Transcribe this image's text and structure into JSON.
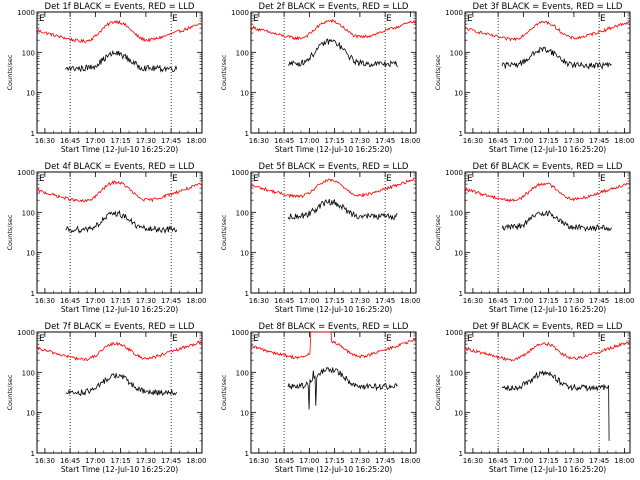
{
  "chart_data": {
    "type": "line",
    "xlabel": "Start Time (12-Jul-10 16:25:20)",
    "ylabel": "Counts/sec",
    "x_ticks": [
      "16:30",
      "16:45",
      "17:00",
      "17:15",
      "17:30",
      "17:45",
      "18:00"
    ],
    "y_ticks": [
      "1",
      "10",
      "100",
      "1000"
    ],
    "y_scale": "log",
    "ylim": [
      1,
      1000
    ],
    "xlim_minutes_after_16_25_20": [
      0,
      98
    ],
    "vertical_dotted_lines": [
      "16:45",
      "17:45"
    ],
    "corner_markers": [
      "E",
      "E"
    ],
    "colors": {
      "events": "#000000",
      "lld": "#ff0000"
    },
    "panels": [
      {
        "title": "Det 1f BLACK = Events, RED = LLD",
        "lld_base": 150,
        "lld_peak": 580,
        "events_base": 40,
        "events_peak": 95,
        "events_start": 17,
        "events_end": 83,
        "glitch": "none"
      },
      {
        "title": "Det 2f BLACK = Events, RED = LLD",
        "lld_base": 180,
        "lld_peak": 600,
        "events_base": 52,
        "events_peak": 190,
        "events_start": 22,
        "events_end": 87,
        "glitch": "none"
      },
      {
        "title": "Det 3f BLACK = Events, RED = LLD",
        "lld_base": 170,
        "lld_peak": 560,
        "events_base": 48,
        "events_peak": 120,
        "events_start": 22,
        "events_end": 87,
        "glitch": "none"
      },
      {
        "title": "Det 4f BLACK = Events, RED = LLD",
        "lld_base": 150,
        "lld_peak": 560,
        "events_base": 38,
        "events_peak": 95,
        "events_start": 17,
        "events_end": 83,
        "glitch": "none"
      },
      {
        "title": "Det 5f BLACK = Events, RED = LLD",
        "lld_base": 200,
        "lld_peak": 620,
        "events_base": 80,
        "events_peak": 185,
        "events_start": 22,
        "events_end": 87,
        "glitch": "none"
      },
      {
        "title": "Det 6f BLACK = Events, RED = LLD",
        "lld_base": 160,
        "lld_peak": 520,
        "events_base": 42,
        "events_peak": 100,
        "events_start": 22,
        "events_end": 87,
        "glitch": "none"
      },
      {
        "title": "Det 7f BLACK = Events, RED = LLD",
        "lld_base": 170,
        "lld_peak": 520,
        "events_base": 32,
        "events_peak": 85,
        "events_start": 17,
        "events_end": 83,
        "glitch": "none"
      },
      {
        "title": "Det 8f BLACK = Events, RED = LLD",
        "lld_base": 190,
        "lld_peak": 560,
        "events_base": 45,
        "events_peak": 120,
        "events_start": 22,
        "events_end": 87,
        "glitch": "saturated"
      },
      {
        "title": "Det 9f BLACK = Events, RED = LLD",
        "lld_base": 170,
        "lld_peak": 520,
        "events_base": 42,
        "events_peak": 95,
        "events_start": 22,
        "events_end": 85,
        "glitch": "dropout"
      }
    ]
  }
}
